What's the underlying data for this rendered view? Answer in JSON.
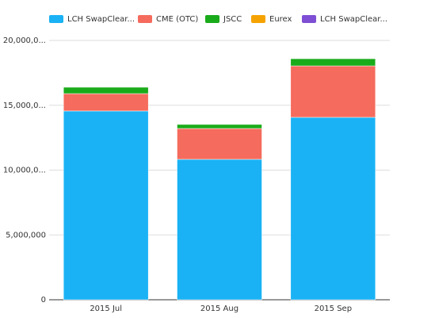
{
  "chart_data": {
    "type": "stacked-bar",
    "categories": [
      "2015 Jul",
      "2015 Aug",
      "2015 Sep"
    ],
    "series": [
      {
        "name": "LCH SwapClear...",
        "color": "#1ab2f5",
        "values": [
          14560000,
          10830000,
          14070000
        ]
      },
      {
        "name": "CME (OTC)",
        "color": "#f56b5d",
        "values": [
          1340000,
          2380000,
          3970000
        ]
      },
      {
        "name": "JSCC",
        "color": "#1aab1a",
        "values": [
          490000,
          310000,
          550000
        ]
      },
      {
        "name": "Eurex",
        "color": "#f5a300",
        "values": [
          0,
          0,
          0
        ]
      },
      {
        "name": "LCH SwapClear...",
        "color": "#7e4fd4",
        "values": [
          0,
          0,
          0
        ]
      }
    ],
    "ylim": [
      0,
      20000000
    ],
    "yticks": [
      0,
      {
        "value": 5000000,
        "label": "5,000,000"
      },
      {
        "value": 10000000,
        "label": "10,000,0..."
      },
      {
        "value": 15000000,
        "label": "15,000,0..."
      },
      {
        "value": 20000000,
        "label": "20,000,0..."
      }
    ],
    "grid": true
  }
}
